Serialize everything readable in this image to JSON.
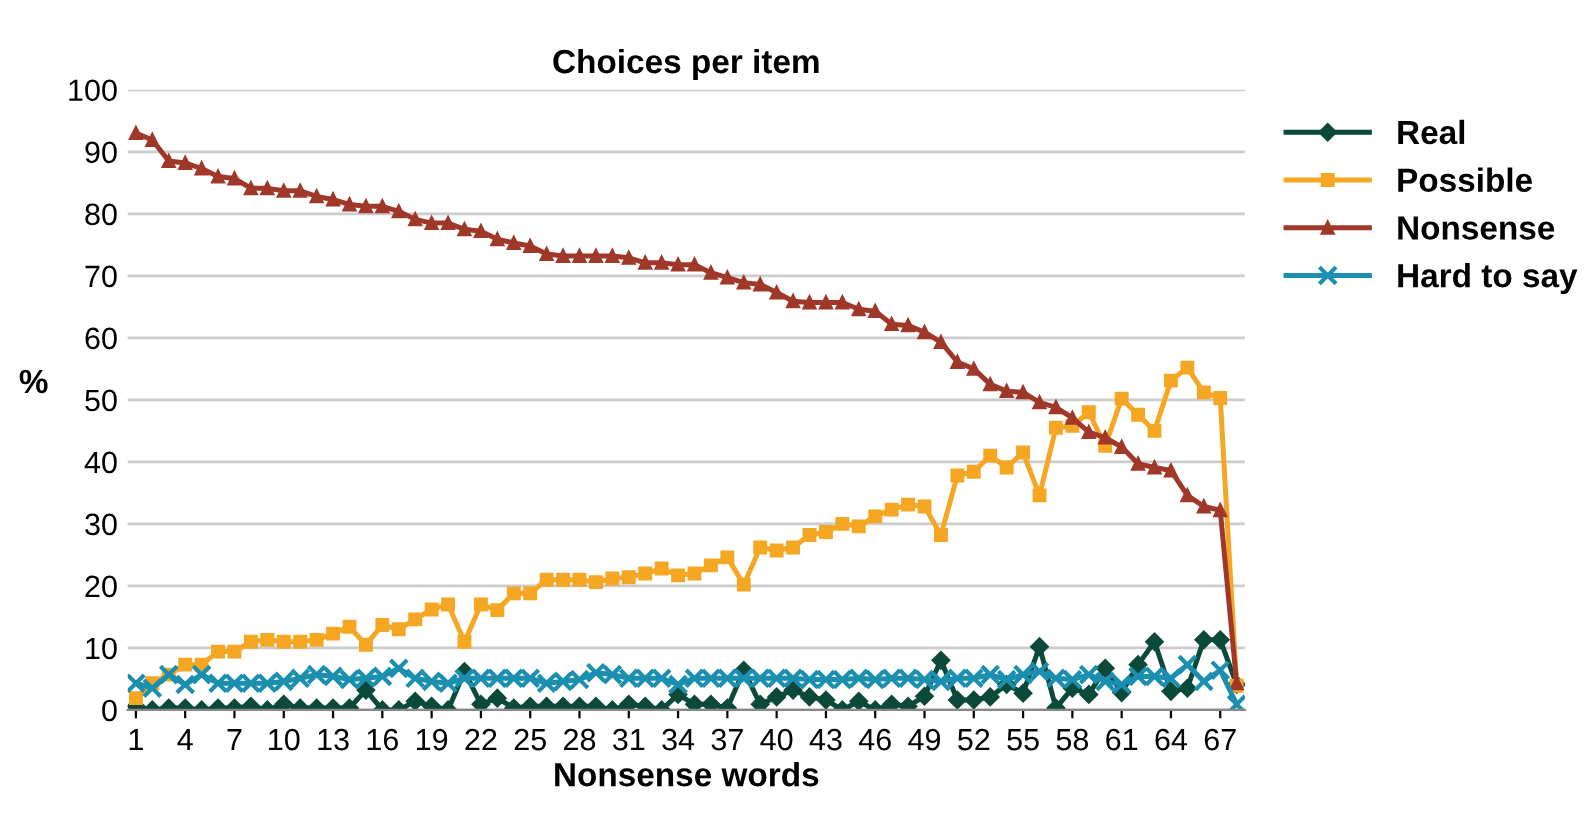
{
  "chart_data": {
    "type": "line",
    "title": "Choices per item",
    "xlabel": "Nonsense words",
    "ylabel": "%",
    "x": [
      1,
      2,
      3,
      4,
      5,
      6,
      7,
      8,
      9,
      10,
      11,
      12,
      13,
      14,
      15,
      16,
      17,
      18,
      19,
      20,
      21,
      22,
      23,
      24,
      25,
      26,
      27,
      28,
      29,
      30,
      31,
      32,
      33,
      34,
      35,
      36,
      37,
      38,
      39,
      40,
      41,
      42,
      43,
      44,
      45,
      46,
      47,
      48,
      49,
      50,
      51,
      52,
      53,
      54,
      55,
      56,
      57,
      58,
      59,
      60,
      61,
      62,
      63,
      64,
      65,
      66,
      67,
      68
    ],
    "xlim": [
      0.5,
      68.5
    ],
    "xticks": [
      1,
      4,
      7,
      10,
      13,
      16,
      19,
      22,
      25,
      28,
      31,
      34,
      37,
      40,
      43,
      46,
      49,
      52,
      55,
      58,
      61,
      64,
      67
    ],
    "ylim": [
      0,
      100
    ],
    "yticks": [
      0,
      10,
      20,
      30,
      40,
      50,
      60,
      70,
      80,
      90,
      100
    ],
    "grid": "y",
    "legend": "top right",
    "series": [
      {
        "name": "Real",
        "color": "#0b4a3a",
        "marker": "diamond",
        "values": [
          0.6,
          0,
          0.3,
          0.3,
          0,
          0.3,
          0.3,
          0.6,
          0,
          0.9,
          0.3,
          0.3,
          0.3,
          0.3,
          3.2,
          0,
          0,
          1.4,
          0.6,
          0,
          6.2,
          0.9,
          1.9,
          0.3,
          0.6,
          0.6,
          0.6,
          0.6,
          0.6,
          0,
          0.9,
          0.6,
          0,
          2.5,
          0.9,
          0.9,
          0.3,
          6.4,
          0.9,
          2.1,
          3.2,
          2.1,
          1.6,
          0,
          1.4,
          0,
          0.9,
          0.6,
          2.2,
          8,
          1.6,
          1.6,
          2.1,
          4.1,
          2.7,
          10.2,
          0.3,
          3.5,
          2.5,
          6.7,
          2.8,
          7.3,
          11,
          3,
          3.5,
          11.3,
          11.3,
          4.1
        ]
      },
      {
        "name": "Possible",
        "color": "#f5a623",
        "marker": "square",
        "values": [
          1.9,
          4.3,
          5.7,
          7.3,
          7.3,
          9.4,
          9.4,
          11,
          11.3,
          11,
          11,
          11.3,
          12.3,
          13.4,
          10.5,
          13.7,
          13,
          14.6,
          16.2,
          17,
          11,
          17,
          16.1,
          18.8,
          18.8,
          21,
          21,
          21,
          20.6,
          21.2,
          21.4,
          22,
          22.8,
          21.7,
          22,
          23.3,
          24.6,
          20.2,
          26.2,
          25.7,
          26.2,
          28.2,
          28.7,
          30,
          29.6,
          31.2,
          32.3,
          33.1,
          32.8,
          28.2,
          37.8,
          38.4,
          41,
          39.1,
          41.5,
          34.6,
          45.5,
          45.8,
          48,
          42.6,
          50.2,
          47.6,
          45,
          53.1,
          55.2,
          51.2,
          50.3,
          3.9
        ]
      },
      {
        "name": "Nonsense",
        "color": "#a0382a",
        "marker": "triangle",
        "values": [
          93,
          91.9,
          88.5,
          88.2,
          87.3,
          86,
          85.7,
          84.1,
          84.1,
          83.7,
          83.7,
          82.8,
          82.3,
          81.5,
          81.2,
          81.2,
          80.4,
          79.1,
          78.5,
          78.5,
          77.5,
          77.2,
          75.9,
          75.3,
          74.8,
          73.5,
          73.2,
          73.2,
          73.2,
          73.2,
          72.9,
          72.1,
          72.1,
          71.8,
          71.8,
          70.5,
          69.7,
          68.9,
          68.6,
          67.3,
          65.9,
          65.7,
          65.7,
          65.7,
          64.6,
          64.3,
          62.2,
          62,
          60.9,
          59.3,
          56.1,
          55,
          52.5,
          51.4,
          51.2,
          49.6,
          48.8,
          47.1,
          44.8,
          43.9,
          42.4,
          39.7,
          39.1,
          38.6,
          34.6,
          32.8,
          32.2,
          4.3
        ]
      },
      {
        "name": "Hard to say",
        "color": "#1a8fb0",
        "marker": "cross",
        "values": [
          4.3,
          3.5,
          5.7,
          4.1,
          5.7,
          4.3,
          4.3,
          4.3,
          4.3,
          4.6,
          5.1,
          5.7,
          5.4,
          4.9,
          5.1,
          5.4,
          6.7,
          5.1,
          4.6,
          4.3,
          5.1,
          5.1,
          5.1,
          5.1,
          5.1,
          4.3,
          4.6,
          4.9,
          6,
          5.7,
          5.1,
          5.1,
          5.1,
          4.1,
          5.1,
          5.1,
          5.1,
          5.1,
          5.1,
          5.1,
          5.1,
          4.9,
          4.9,
          4.9,
          5.1,
          4.9,
          5.1,
          5.1,
          4.9,
          4.6,
          5.1,
          5.1,
          5.7,
          4.9,
          5.7,
          6.2,
          5.1,
          4.9,
          5.7,
          4.6,
          4.1,
          5.4,
          5.4,
          5.1,
          7.3,
          4.6,
          6.4,
          0.9
        ]
      }
    ]
  }
}
